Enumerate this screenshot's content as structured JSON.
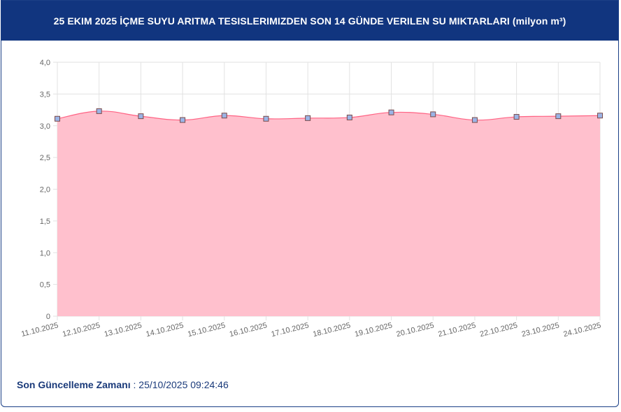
{
  "header": {
    "title": "25 EKIM 2025 İÇME SUYU ARITMA TESISLERIMIZDEN SON 14 GÜNDE VERILEN SU MIKTARLARI (milyon m³)"
  },
  "footer": {
    "label": "Son Güncelleme Zamanı",
    "separator": " : ",
    "value": "25/10/2025 09:24:46"
  },
  "colors": {
    "header_bg": "#11357f",
    "area_fill": "#ffc0cd",
    "line": "#ff6384",
    "point_fill": "#9bb4e6",
    "point_stroke": "#7a4a4a",
    "grid": "#e2e2e2"
  },
  "chart_data": {
    "type": "area",
    "categories": [
      "11.10.2025",
      "12.10.2025",
      "13.10.2025",
      "14.10.2025",
      "15.10.2025",
      "16.10.2025",
      "17.10.2025",
      "18.10.2025",
      "19.10.2025",
      "20.10.2025",
      "21.10.2025",
      "22.10.2025",
      "23.10.2025",
      "24.10.2025"
    ],
    "values": [
      3.11,
      3.23,
      3.15,
      3.09,
      3.16,
      3.11,
      3.12,
      3.13,
      3.21,
      3.18,
      3.09,
      3.14,
      3.15,
      3.16
    ],
    "ylim": [
      0,
      4
    ],
    "yticks": [
      0,
      0.5,
      1,
      1.5,
      2,
      2.5,
      3,
      3.5,
      4
    ],
    "ytick_labels": [
      "0",
      "0,5",
      "1,0",
      "1,5",
      "2,0",
      "2,5",
      "3,0",
      "3,5",
      "4,0"
    ],
    "grid": true,
    "legend": "none"
  }
}
